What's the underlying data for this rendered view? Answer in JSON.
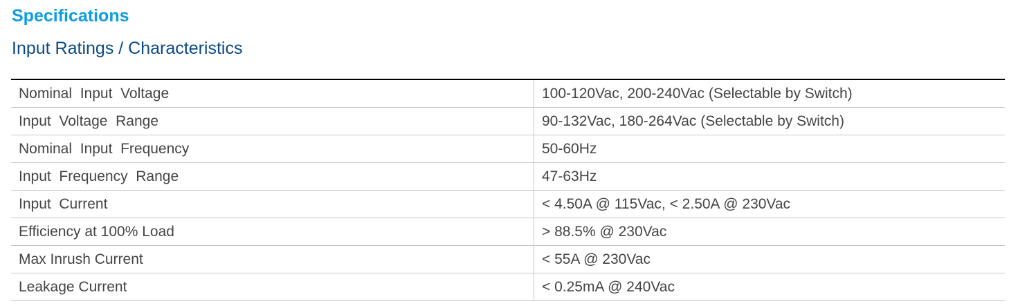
{
  "title": "Specifications",
  "subtitle": "Input Ratings / Characteristics",
  "rows": [
    {
      "label": "Nominal  Input  Voltage",
      "value": "100-120Vac, 200-240Vac (Selectable by Switch)"
    },
    {
      "label": "Input  Voltage  Range",
      "value": "90-132Vac, 180-264Vac (Selectable by Switch)"
    },
    {
      "label": "Nominal  Input  Frequency",
      "value": "50-60Hz"
    },
    {
      "label": "Input  Frequency  Range",
      "value": "47-63Hz"
    },
    {
      "label": "Input  Current",
      "value": "< 4.50A @ 115Vac, < 2.50A @ 230Vac"
    },
    {
      "label": "Efficiency at 100% Load",
      "value": "> 88.5% @ 230Vac"
    },
    {
      "label": "Max Inrush Current",
      "value": "< 55A @ 230Vac"
    },
    {
      "label": "Leakage Current",
      "value": "< 0.25mA @ 240Vac"
    }
  ]
}
